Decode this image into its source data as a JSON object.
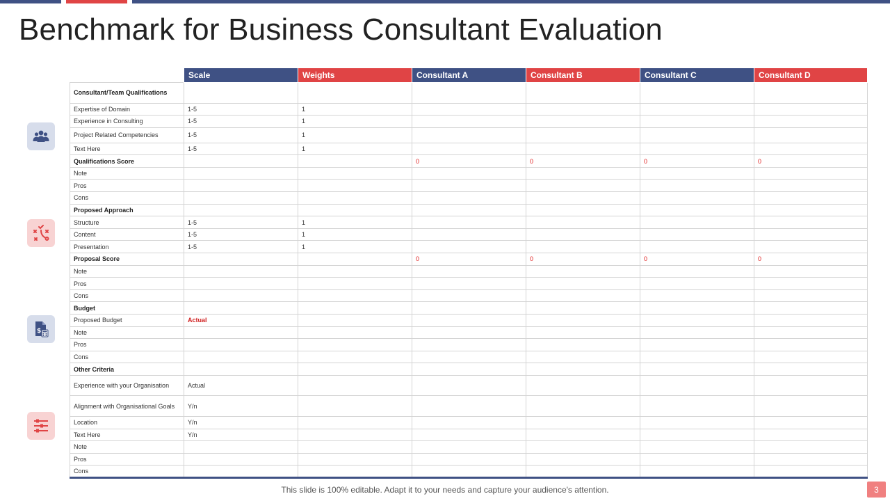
{
  "title": "Benchmark for Business Consultant Evaluation",
  "colors": {
    "navy": "#3F5184",
    "red": "#E04445",
    "icon_blue_bg": "#D7DDEB",
    "icon_red_bg": "#F8D3D3"
  },
  "icons": [
    "team-icon",
    "strategy-icon",
    "budget-document-icon",
    "criteria-settings-icon"
  ],
  "table": {
    "headers": [
      "Scale",
      "Weights",
      "Consultant A",
      "Consultant B",
      "Consultant C",
      "Consultant D"
    ],
    "rows": [
      {
        "label": "Consultant/Team  Qualifications",
        "scale": "",
        "weight": "",
        "a": "",
        "b": "",
        "c": "",
        "d": ""
      },
      {
        "label": "Expertise of Domain",
        "scale": "1-5",
        "weight": "1",
        "a": "",
        "b": "",
        "c": "",
        "d": ""
      },
      {
        "label": "Experience in Consulting",
        "scale": "1-5",
        "weight": "1",
        "a": "",
        "b": "",
        "c": "",
        "d": ""
      },
      {
        "label": "Project Related Competencies",
        "scale": "1-5",
        "weight": "1",
        "a": "",
        "b": "",
        "c": "",
        "d": ""
      },
      {
        "label": "Text Here",
        "scale": "1-5",
        "weight": "1",
        "a": "",
        "b": "",
        "c": "",
        "d": ""
      },
      {
        "label": "Qualifications Score",
        "scale": "",
        "weight": "",
        "a": "0",
        "b": "0",
        "c": "0",
        "d": "0"
      },
      {
        "label": "Note",
        "scale": "",
        "weight": "",
        "a": "",
        "b": "",
        "c": "",
        "d": ""
      },
      {
        "label": "Pros",
        "scale": "",
        "weight": "",
        "a": "",
        "b": "",
        "c": "",
        "d": ""
      },
      {
        "label": "Cons",
        "scale": "",
        "weight": "",
        "a": "",
        "b": "",
        "c": "",
        "d": ""
      },
      {
        "label": "Proposed Approach",
        "scale": "",
        "weight": "",
        "a": "",
        "b": "",
        "c": "",
        "d": ""
      },
      {
        "label": "Structure",
        "scale": "1-5",
        "weight": "1",
        "a": "",
        "b": "",
        "c": "",
        "d": ""
      },
      {
        "label": "Content",
        "scale": "1-5",
        "weight": "1",
        "a": "",
        "b": "",
        "c": "",
        "d": ""
      },
      {
        "label": "Presentation",
        "scale": "1-5",
        "weight": "1",
        "a": "",
        "b": "",
        "c": "",
        "d": ""
      },
      {
        "label": "Proposal Score",
        "scale": "",
        "weight": "",
        "a": "0",
        "b": "0",
        "c": "0",
        "d": "0"
      },
      {
        "label": "Note",
        "scale": "",
        "weight": "",
        "a": "",
        "b": "",
        "c": "",
        "d": ""
      },
      {
        "label": "Pros",
        "scale": "",
        "weight": "",
        "a": "",
        "b": "",
        "c": "",
        "d": ""
      },
      {
        "label": "Cons",
        "scale": "",
        "weight": "",
        "a": "",
        "b": "",
        "c": "",
        "d": ""
      },
      {
        "label": "Budget",
        "scale": "",
        "weight": "",
        "a": "",
        "b": "",
        "c": "",
        "d": ""
      },
      {
        "label": "Proposed Budget",
        "scale": "Actual",
        "weight": "",
        "a": "",
        "b": "",
        "c": "",
        "d": ""
      },
      {
        "label": "Note",
        "scale": "",
        "weight": "",
        "a": "",
        "b": "",
        "c": "",
        "d": ""
      },
      {
        "label": "Pros",
        "scale": "",
        "weight": "",
        "a": "",
        "b": "",
        "c": "",
        "d": ""
      },
      {
        "label": "Cons",
        "scale": "",
        "weight": "",
        "a": "",
        "b": "",
        "c": "",
        "d": ""
      },
      {
        "label": "Other Criteria",
        "scale": "",
        "weight": "",
        "a": "",
        "b": "",
        "c": "",
        "d": ""
      },
      {
        "label": "Experience with your Organisation",
        "scale": "Actual",
        "weight": "",
        "a": "",
        "b": "",
        "c": "",
        "d": ""
      },
      {
        "label": "Alignment with Organisational Goals",
        "scale": "Y/n",
        "weight": "",
        "a": "",
        "b": "",
        "c": "",
        "d": ""
      },
      {
        "label": "Location",
        "scale": "Y/n",
        "weight": "",
        "a": "",
        "b": "",
        "c": "",
        "d": ""
      },
      {
        "label": "Text Here",
        "scale": "Y/n",
        "weight": "",
        "a": "",
        "b": "",
        "c": "",
        "d": ""
      },
      {
        "label": "Note",
        "scale": "",
        "weight": "",
        "a": "",
        "b": "",
        "c": "",
        "d": ""
      },
      {
        "label": "Pros",
        "scale": "",
        "weight": "",
        "a": "",
        "b": "",
        "c": "",
        "d": ""
      },
      {
        "label": "Cons",
        "scale": "",
        "weight": "",
        "a": "",
        "b": "",
        "c": "",
        "d": ""
      }
    ]
  },
  "footer": "This slide is 100% editable. Adapt it to your needs and capture your audience's attention.",
  "page_number": "3"
}
